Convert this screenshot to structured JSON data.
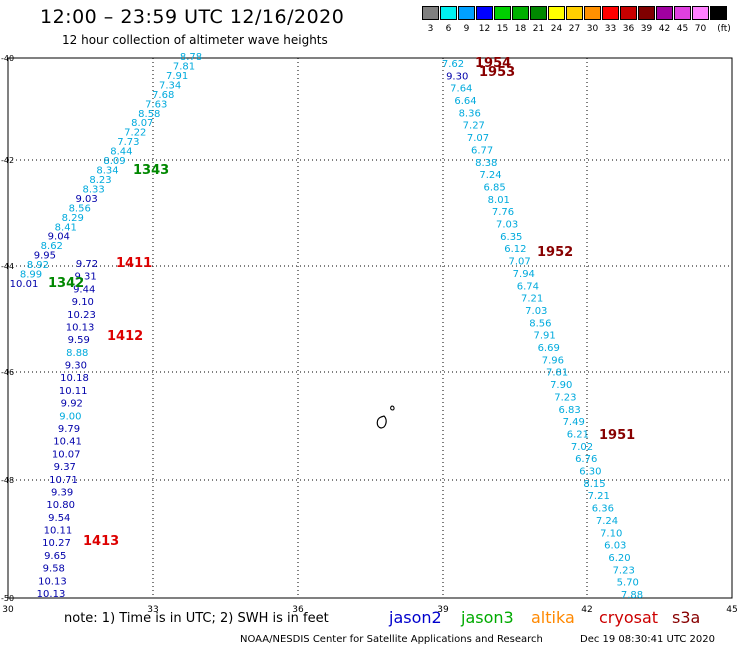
{
  "header": {
    "title": "12:00 – 23:59 UTC 12/16/2020",
    "subtitle": "12 hour collection of altimeter wave heights"
  },
  "legend": {
    "unit": "(ft)",
    "items": [
      {
        "label": "3",
        "color": "#808080"
      },
      {
        "label": "6",
        "color": "#00f0f0"
      },
      {
        "label": "9",
        "color": "#00a0ff"
      },
      {
        "label": "12",
        "color": "#0000ff"
      },
      {
        "label": "15",
        "color": "#00d000"
      },
      {
        "label": "18",
        "color": "#00b000"
      },
      {
        "label": "21",
        "color": "#008800"
      },
      {
        "label": "24",
        "color": "#ffff00"
      },
      {
        "label": "27",
        "color": "#ffd000"
      },
      {
        "label": "30",
        "color": "#ff9000"
      },
      {
        "label": "33",
        "color": "#ff0000"
      },
      {
        "label": "36",
        "color": "#c80000"
      },
      {
        "label": "39",
        "color": "#800000"
      },
      {
        "label": "42",
        "color": "#a000a0"
      },
      {
        "label": "45",
        "color": "#e040e0"
      },
      {
        "label": "70",
        "color": "#ff80ff"
      },
      {
        "label": "",
        "color": "#000000"
      }
    ]
  },
  "axes": {
    "x_ticks": [
      "30",
      "33",
      "36",
      "39",
      "42",
      "45"
    ],
    "y_ticks": [
      "-40",
      "-42",
      "-44",
      "-46",
      "-48",
      "-50"
    ]
  },
  "colors": {
    "cyan": "#00aadd",
    "blue": "#0000aa",
    "green": "#008800",
    "red": "#dd0000",
    "darkred": "#880000"
  },
  "tracks": {
    "west_upper": {
      "values": [
        "8.78",
        "7.81",
        "7.91",
        "7.34",
        "7.68",
        "7.63",
        "8.58",
        "8.07",
        "7.22",
        "7.73",
        "8.44",
        "8.09",
        "8.34",
        "8.23",
        "8.33",
        "9.03",
        "8.56",
        "8.29",
        "8.41",
        "9.04",
        "8.62",
        "9.95",
        "8.92",
        "8.99",
        "10.01"
      ],
      "colors": [
        "c",
        "c",
        "c",
        "c",
        "c",
        "c",
        "c",
        "c",
        "c",
        "c",
        "c",
        "c",
        "c",
        "c",
        "c",
        "b",
        "c",
        "c",
        "c",
        "b",
        "c",
        "b",
        "c",
        "c",
        "b"
      ]
    },
    "west_lower": {
      "values": [
        "9.72",
        "9.31",
        "9.44",
        "9.10",
        "10.23",
        "10.13",
        "9.59",
        "8.88",
        "9.30",
        "10.18",
        "10.11",
        "9.92",
        "9.00",
        "9.79",
        "10.41",
        "10.07",
        "9.37",
        "10.71",
        "9.39",
        "10.80",
        "9.54",
        "10.11",
        "10.27",
        "9.65",
        "9.58",
        "10.13",
        "10.13"
      ],
      "colors": [
        "b",
        "b",
        "b",
        "b",
        "b",
        "b",
        "b",
        "c",
        "b",
        "b",
        "b",
        "b",
        "c",
        "b",
        "b",
        "b",
        "b",
        "b",
        "b",
        "b",
        "b",
        "b",
        "b",
        "b",
        "b",
        "b",
        "b"
      ]
    },
    "east": {
      "values": [
        "7.62",
        "9.30",
        "7.64",
        "6.64",
        "8.36",
        "7.27",
        "7.07",
        "6.77",
        "8.38",
        "7.24",
        "6.85",
        "8.01",
        "7.76",
        "7.03",
        "6.35",
        "6.12",
        "7.07",
        "7.94",
        "6.74",
        "7.21",
        "7.03",
        "8.56",
        "7.91",
        "6.69",
        "7.96",
        "7.81",
        "7.90",
        "7.23",
        "6.83",
        "7.49",
        "6.21",
        "7.02",
        "6.76",
        "6.30",
        "8.15",
        "7.21",
        "6.36",
        "7.24",
        "7.10",
        "6.03",
        "6.20",
        "7.23",
        "5.70",
        "7.88"
      ],
      "colors": [
        "c",
        "b",
        "c",
        "c",
        "c",
        "c",
        "c",
        "c",
        "c",
        "c",
        "c",
        "c",
        "c",
        "c",
        "c",
        "c",
        "c",
        "c",
        "c",
        "c",
        "c",
        "c",
        "c",
        "c",
        "c",
        "c",
        "c",
        "c",
        "c",
        "c",
        "c",
        "c",
        "c",
        "c",
        "c",
        "c",
        "c",
        "c",
        "c",
        "c",
        "c",
        "c",
        "c",
        "c"
      ]
    }
  },
  "pass_times": [
    {
      "label": "1954",
      "color": "#880000"
    },
    {
      "label": "1953",
      "color": "#880000"
    },
    {
      "label": "1343",
      "color": "#008800"
    },
    {
      "label": "1411",
      "color": "#dd0000"
    },
    {
      "label": "1342",
      "color": "#008800"
    },
    {
      "label": "1412",
      "color": "#dd0000"
    },
    {
      "label": "1952",
      "color": "#880000"
    },
    {
      "label": "1951",
      "color": "#880000"
    },
    {
      "label": "1413",
      "color": "#dd0000"
    }
  ],
  "footer": {
    "note": "note:  1) Time is in UTC;  2) SWH is in feet",
    "credit": "NOAA/NESDIS Center for Satellite Applications and Research",
    "timestamp": "Dec 19 08:30:41 UTC 2020",
    "satellites": [
      {
        "label": "jason2",
        "color": "#0000cc"
      },
      {
        "label": "jason3",
        "color": "#00aa00"
      },
      {
        "label": "altika",
        "color": "#ff8800"
      },
      {
        "label": "cryosat",
        "color": "#cc0000"
      },
      {
        "label": "s3a",
        "color": "#880000"
      }
    ]
  }
}
